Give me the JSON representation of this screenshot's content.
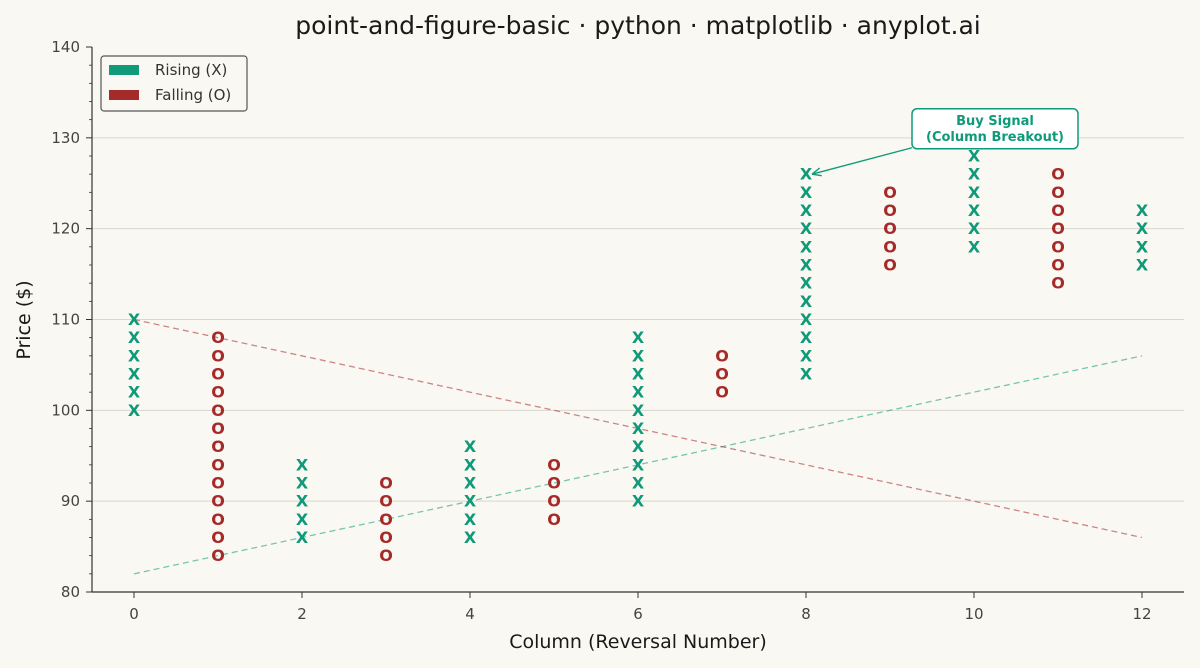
{
  "chart_data": {
    "type": "scatter",
    "title": "point-and-figure-basic · python · matplotlib · anyplot.ai",
    "xlabel": "Column (Reversal Number)",
    "ylabel": "Price ($)",
    "xlim": [
      -0.5,
      12.5
    ],
    "ylim": [
      80,
      140
    ],
    "xticks": [
      0,
      2,
      4,
      6,
      8,
      10,
      12
    ],
    "yticks": [
      80,
      90,
      100,
      110,
      120,
      130,
      140
    ],
    "grid": "y",
    "legend_position": "top-left",
    "box_size": 2,
    "colors": {
      "rising": "#0F9A7A",
      "falling": "#A52A2A",
      "background": "#FAF8F2"
    },
    "series": [
      {
        "name": "Rising (X)",
        "symbol": "X",
        "columns": [
          {
            "x": 0,
            "from": 100,
            "to": 110
          },
          {
            "x": 2,
            "from": 86,
            "to": 94
          },
          {
            "x": 4,
            "from": 86,
            "to": 96
          },
          {
            "x": 6,
            "from": 90,
            "to": 108
          },
          {
            "x": 8,
            "from": 104,
            "to": 126
          },
          {
            "x": 10,
            "from": 118,
            "to": 128
          },
          {
            "x": 12,
            "from": 116,
            "to": 122
          }
        ]
      },
      {
        "name": "Falling (O)",
        "symbol": "O",
        "columns": [
          {
            "x": 1,
            "from": 84,
            "to": 108
          },
          {
            "x": 3,
            "from": 84,
            "to": 92
          },
          {
            "x": 5,
            "from": 88,
            "to": 94
          },
          {
            "x": 7,
            "from": 102,
            "to": 106
          },
          {
            "x": 9,
            "from": 116,
            "to": 124
          },
          {
            "x": 11,
            "from": 114,
            "to": 126
          }
        ]
      }
    ],
    "trendlines": [
      {
        "kind": "support",
        "color": "rising",
        "from": [
          0,
          82
        ],
        "to": [
          12,
          106
        ]
      },
      {
        "kind": "resistance",
        "color": "falling",
        "from": [
          0,
          110
        ],
        "to": [
          12,
          86
        ]
      }
    ],
    "annotations": [
      {
        "lines": [
          "Buy Signal",
          "(Column Breakout)"
        ],
        "point": [
          8,
          126
        ],
        "label_at": [
          10.25,
          131
        ]
      }
    ]
  }
}
